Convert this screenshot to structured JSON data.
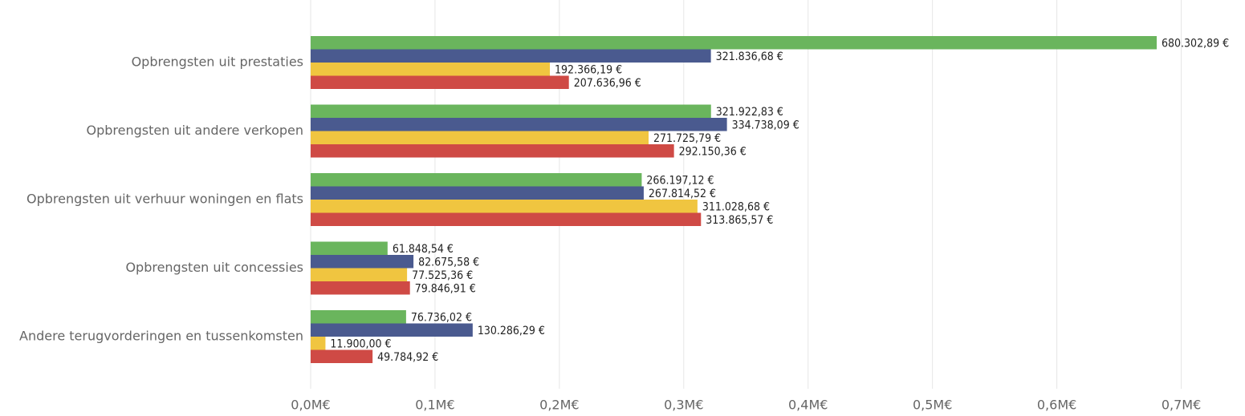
{
  "chart_data": {
    "type": "hbar",
    "categories": [
      "Opbrengsten uit prestaties",
      "Opbrengsten uit andere verkopen",
      "Opbrengsten uit verhuur woningen en flats",
      "Opbrengsten uit concessies",
      "Andere terugvorderingen en tussenkomsten"
    ],
    "series": [
      {
        "color": "#6ab55d",
        "values": [
          680302.89,
          321922.83,
          266197.12,
          61848.54,
          76736.02
        ],
        "value_labels": [
          "680.302,89 €",
          "321.922,83 €",
          "266.197,12 €",
          "61.848,54 €",
          "76.736,02 €"
        ]
      },
      {
        "color": "#4a5a8f",
        "values": [
          321836.68,
          334738.09,
          267814.52,
          82675.58,
          130286.29
        ],
        "value_labels": [
          "321.836,68 €",
          "334.738,09 €",
          "267.814,52 €",
          "82.675,58 €",
          "130.286,29 €"
        ]
      },
      {
        "color": "#f0c540",
        "values": [
          192366.19,
          271725.79,
          311028.68,
          77525.36,
          11900.0
        ],
        "value_labels": [
          "192.366,19 €",
          "271.725,79 €",
          "311.028,68 €",
          "77.525,36 €",
          "11.900,00 €"
        ]
      },
      {
        "color": "#cf4a45",
        "values": [
          207636.96,
          292150.36,
          313865.57,
          79846.91,
          49784.92
        ],
        "value_labels": [
          "207.636,96 €",
          "292.150,36 €",
          "313.865,57 €",
          "79.846,91 €",
          "49.784,92 €"
        ]
      }
    ],
    "xlim": [
      0,
      750000
    ],
    "xticks": [
      {
        "value": 0,
        "label": "0,0M€"
      },
      {
        "value": 100000,
        "label": "0,1M€"
      },
      {
        "value": 200000,
        "label": "0,2M€"
      },
      {
        "value": 300000,
        "label": "0,3M€"
      },
      {
        "value": 400000,
        "label": "0,4M€"
      },
      {
        "value": 500000,
        "label": "0,5M€"
      },
      {
        "value": 600000,
        "label": "0,6M€"
      },
      {
        "value": 700000,
        "label": "0,7M€"
      }
    ],
    "grid": true
  }
}
